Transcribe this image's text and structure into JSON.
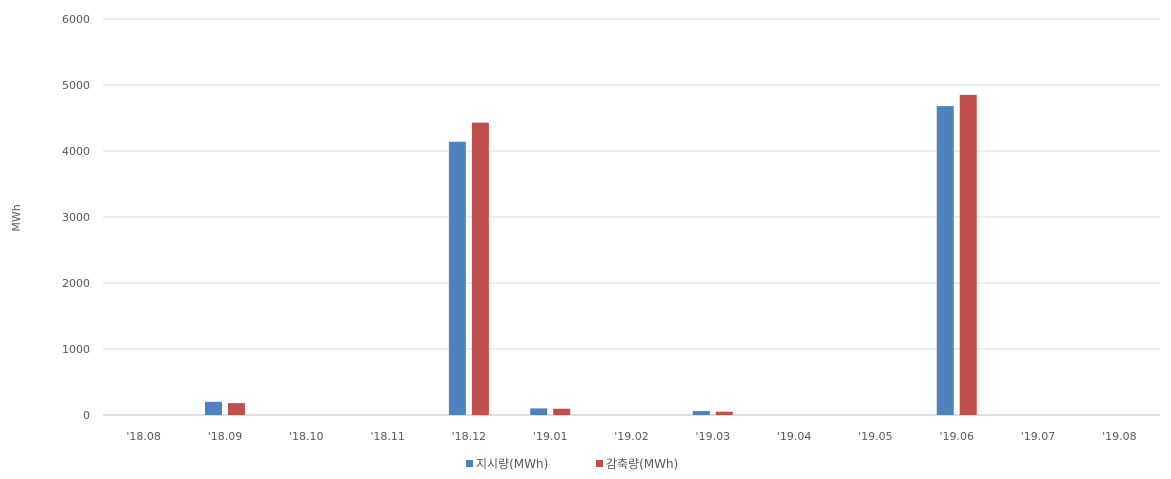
{
  "chart_data": {
    "type": "bar",
    "title": "",
    "xlabel": "",
    "ylabel": "MWh",
    "ylim": [
      0,
      6000
    ],
    "yticks": [
      0,
      1000,
      2000,
      3000,
      4000,
      5000,
      6000
    ],
    "grid": "horizontal",
    "legend_position": "bottom",
    "categories": [
      "'18.08",
      "'18.09",
      "'18.10",
      "'18.11",
      "'18.12",
      "'19.01",
      "'19.02",
      "'19.03",
      "'19.04",
      "'19.05",
      "'19.06",
      "'19.07",
      "'19.08"
    ],
    "series": [
      {
        "name": "지시량(MWh)",
        "color": "#4f81bd",
        "values": [
          0,
          200,
          0,
          0,
          4140,
          100,
          0,
          60,
          0,
          0,
          4680,
          0,
          0
        ]
      },
      {
        "name": "감축량(MWh)",
        "color": "#c0504d",
        "values": [
          0,
          180,
          0,
          0,
          4430,
          95,
          0,
          50,
          0,
          0,
          4850,
          0,
          0
        ]
      }
    ]
  }
}
